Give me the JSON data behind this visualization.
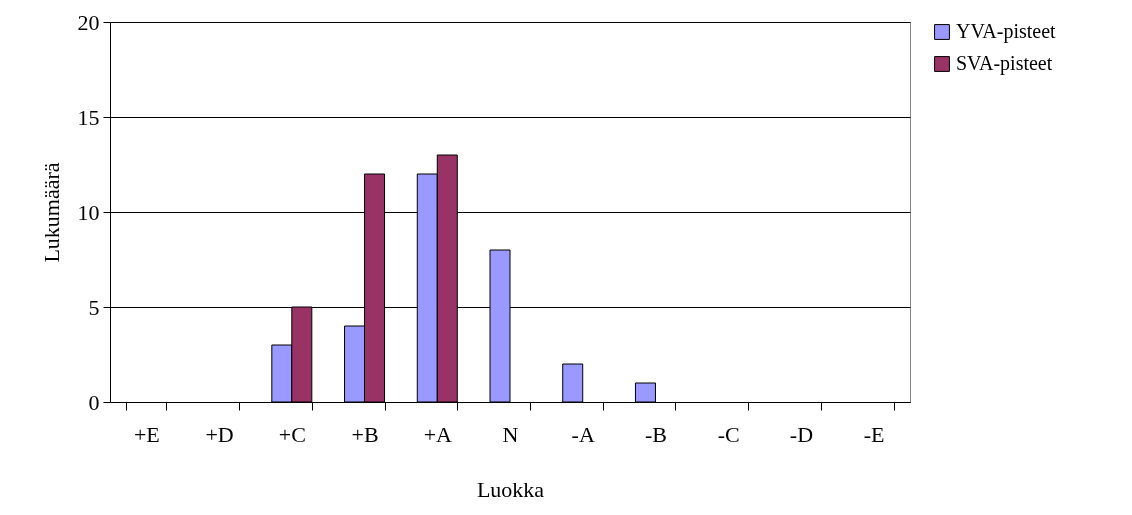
{
  "chart_data": {
    "type": "bar",
    "xlabel": "Luokka",
    "ylabel": "Lukumäärä",
    "categories": [
      "+E",
      "+D",
      "+C",
      "+B",
      "+A",
      "N",
      "-A",
      "-B",
      "-C",
      "-D",
      "-E"
    ],
    "series": [
      {
        "name": "YVA-pisteet",
        "color": "#9999ff",
        "values": [
          0,
          0,
          3,
          4,
          12,
          8,
          2,
          1,
          0,
          0,
          0
        ]
      },
      {
        "name": "SVA-pisteet",
        "color": "#993366",
        "values": [
          0,
          0,
          5,
          12,
          13,
          0,
          0,
          0,
          0,
          0,
          0
        ]
      }
    ],
    "ylim": [
      0,
      20
    ],
    "yticks": [
      0,
      5,
      10,
      15,
      20
    ],
    "grid": "y",
    "legend": "right"
  }
}
